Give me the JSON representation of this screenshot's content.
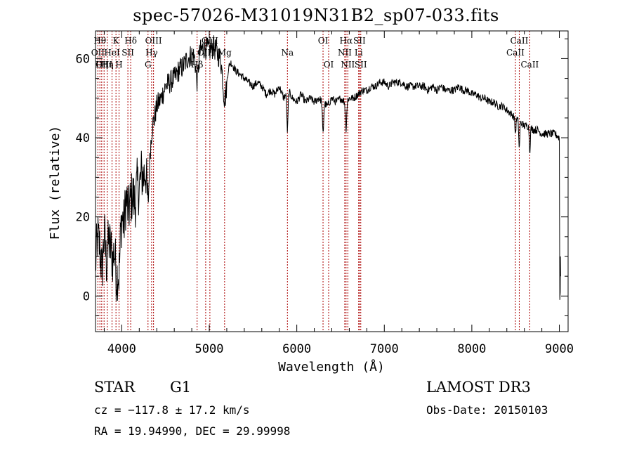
{
  "chart_data": {
    "type": "line",
    "title": "spec-57026-M31019N31B2_sp07-033.fits",
    "xlabel": "Wavelength (Å)",
    "ylabel": "Flux (relative)",
    "xlim": [
      3700,
      9100
    ],
    "ylim": [
      -9,
      67
    ],
    "xticks": [
      4000,
      5000,
      6000,
      7000,
      8000,
      9000
    ],
    "yticks": [
      0,
      20,
      40,
      60
    ],
    "line_color": "#000000",
    "marker_color": "#aa0000",
    "lines": [
      {
        "wave": 3727,
        "label": "OII",
        "row": 1
      },
      {
        "wave": 3750,
        "label": "Hθ",
        "row": 0
      },
      {
        "wave": 3771,
        "label": "Hη",
        "row": 2
      },
      {
        "wave": 3798,
        "label": "OIII",
        "row": 2
      },
      {
        "wave": 3835,
        "label": "Hη",
        "row": 2
      },
      {
        "wave": 3889,
        "label": "HeI",
        "row": 1
      },
      {
        "wave": 3934,
        "label": "K",
        "row": 0
      },
      {
        "wave": 3969,
        "label": "H",
        "row": 2
      },
      {
        "wave": 4070,
        "label": "SII",
        "row": 1
      },
      {
        "wave": 4102,
        "label": "Hδ",
        "row": 0
      },
      {
        "wave": 4300,
        "label": "G",
        "row": 2
      },
      {
        "wave": 4341,
        "label": "Hγ",
        "row": 1
      },
      {
        "wave": 4363,
        "label": "OIII",
        "row": 0
      },
      {
        "wave": 4861,
        "label": "Hβ",
        "row": 2
      },
      {
        "wave": 4959,
        "label": "OIII",
        "row": 1
      },
      {
        "wave": 5007,
        "label": "OIII",
        "row": 0
      },
      {
        "wave": 5175,
        "label": "Mg",
        "row": 1
      },
      {
        "wave": 5893,
        "label": "Na",
        "row": 1
      },
      {
        "wave": 6300,
        "label": "OI",
        "row": 0
      },
      {
        "wave": 6364,
        "label": "OI",
        "row": 2
      },
      {
        "wave": 6548,
        "label": "NII",
        "row": 1
      },
      {
        "wave": 6563,
        "label": "Hα",
        "row": 0
      },
      {
        "wave": 6583,
        "label": "NII",
        "row": 2
      },
      {
        "wave": 6707,
        "label": "Li",
        "row": 1
      },
      {
        "wave": 6716,
        "label": "SII",
        "row": 0
      },
      {
        "wave": 6731,
        "label": "SII",
        "row": 2
      },
      {
        "wave": 8498,
        "label": "CaII",
        "row": 1
      },
      {
        "wave": 8542,
        "label": "CaII",
        "row": 0
      },
      {
        "wave": 8662,
        "label": "CaII",
        "row": 2
      }
    ],
    "spectrum": [
      [
        3700,
        8
      ],
      [
        3725,
        15
      ],
      [
        3750,
        12
      ],
      [
        3775,
        6
      ],
      [
        3800,
        16
      ],
      [
        3825,
        8
      ],
      [
        3850,
        14
      ],
      [
        3875,
        12
      ],
      [
        3900,
        9
      ],
      [
        3925,
        18
      ],
      [
        3950,
        12
      ],
      [
        3975,
        16
      ],
      [
        4000,
        20
      ],
      [
        4025,
        18
      ],
      [
        4050,
        25
      ],
      [
        4075,
        21
      ],
      [
        4100,
        24
      ],
      [
        4125,
        26
      ],
      [
        4150,
        23
      ],
      [
        4175,
        28
      ],
      [
        4200,
        27
      ],
      [
        4225,
        31
      ],
      [
        4250,
        30
      ],
      [
        4275,
        33
      ],
      [
        4300,
        28
      ],
      [
        4325,
        38
      ],
      [
        4350,
        43
      ],
      [
        4375,
        45
      ],
      [
        4400,
        48
      ],
      [
        4450,
        50
      ],
      [
        4500,
        53
      ],
      [
        4550,
        54
      ],
      [
        4600,
        55
      ],
      [
        4650,
        57
      ],
      [
        4700,
        58
      ],
      [
        4750,
        60
      ],
      [
        4800,
        61
      ],
      [
        4850,
        60
      ],
      [
        4900,
        62
      ],
      [
        4950,
        63
      ],
      [
        5000,
        62
      ],
      [
        5050,
        63
      ],
      [
        5100,
        61
      ],
      [
        5150,
        60
      ],
      [
        5200,
        58
      ],
      [
        5250,
        59
      ],
      [
        5300,
        57
      ],
      [
        5350,
        56
      ],
      [
        5400,
        55
      ],
      [
        5450,
        54
      ],
      [
        5500,
        53
      ],
      [
        5550,
        54
      ],
      [
        5600,
        53
      ],
      [
        5650,
        51
      ],
      [
        5700,
        52
      ],
      [
        5750,
        51
      ],
      [
        5800,
        53
      ],
      [
        5850,
        50
      ],
      [
        5900,
        52
      ],
      [
        5950,
        50
      ],
      [
        6000,
        49
      ],
      [
        6050,
        51
      ],
      [
        6100,
        49
      ],
      [
        6150,
        50
      ],
      [
        6200,
        49
      ],
      [
        6250,
        50
      ],
      [
        6300,
        49
      ],
      [
        6350,
        48
      ],
      [
        6400,
        50
      ],
      [
        6450,
        49
      ],
      [
        6500,
        50
      ],
      [
        6550,
        49
      ],
      [
        6600,
        50
      ],
      [
        6650,
        50
      ],
      [
        6700,
        51
      ],
      [
        6750,
        52
      ],
      [
        6800,
        52
      ],
      [
        6850,
        53
      ],
      [
        6900,
        53
      ],
      [
        6950,
        54
      ],
      [
        7000,
        54
      ],
      [
        7050,
        53
      ],
      [
        7100,
        54
      ],
      [
        7150,
        54
      ],
      [
        7200,
        54
      ],
      [
        7250,
        53
      ],
      [
        7300,
        53
      ],
      [
        7350,
        53
      ],
      [
        7400,
        53
      ],
      [
        7450,
        53
      ],
      [
        7500,
        52
      ],
      [
        7550,
        53
      ],
      [
        7600,
        52
      ],
      [
        7650,
        53
      ],
      [
        7700,
        52
      ],
      [
        7750,
        52
      ],
      [
        7800,
        52
      ],
      [
        7850,
        53
      ],
      [
        7900,
        52
      ],
      [
        7950,
        52
      ],
      [
        8000,
        51
      ],
      [
        8050,
        51
      ],
      [
        8100,
        50
      ],
      [
        8150,
        50
      ],
      [
        8200,
        49
      ],
      [
        8250,
        49
      ],
      [
        8300,
        48
      ],
      [
        8350,
        48
      ],
      [
        8400,
        47
      ],
      [
        8450,
        46
      ],
      [
        8500,
        45
      ],
      [
        8550,
        44
      ],
      [
        8600,
        43
      ],
      [
        8650,
        43
      ],
      [
        8700,
        42
      ],
      [
        8750,
        42
      ],
      [
        8800,
        41
      ],
      [
        8850,
        41
      ],
      [
        8900,
        41
      ],
      [
        8950,
        41
      ],
      [
        9000,
        40
      ]
    ],
    "absorption": [
      {
        "wave": 3934,
        "depth": 10,
        "width": 18
      },
      {
        "wave": 3969,
        "depth": 9,
        "width": 16
      },
      {
        "wave": 4300,
        "depth": 5,
        "width": 22
      },
      {
        "wave": 4861,
        "depth": 6,
        "width": 18
      },
      {
        "wave": 5175,
        "depth": 9,
        "width": 30
      },
      {
        "wave": 5893,
        "depth": 10,
        "width": 10
      },
      {
        "wave": 6300,
        "depth": 8,
        "width": 10
      },
      {
        "wave": 6563,
        "depth": 7,
        "width": 10
      },
      {
        "wave": 8498,
        "depth": 4,
        "width": 8
      },
      {
        "wave": 8542,
        "depth": 7,
        "width": 8
      },
      {
        "wave": 8662,
        "depth": 6,
        "width": 8
      }
    ],
    "noise": [
      {
        "from": 3700,
        "to": 4300,
        "amp": 7
      },
      {
        "from": 4300,
        "to": 5200,
        "amp": 3
      },
      {
        "from": 5200,
        "to": 9000,
        "amp": 1
      }
    ],
    "tail": [
      [
        9005,
        -1
      ],
      [
        9008,
        0
      ],
      [
        9010,
        1
      ],
      [
        9012,
        10
      ],
      [
        9014,
        5
      ]
    ]
  },
  "info": {
    "object_type": "STAR",
    "subclass": "G1",
    "survey": "LAMOST DR3",
    "velocity": "cz = −117.8 ± 17.2 km/s",
    "obs_date": "Obs-Date: 20150103",
    "coords": "RA =  19.94990, DEC =  29.99998"
  }
}
